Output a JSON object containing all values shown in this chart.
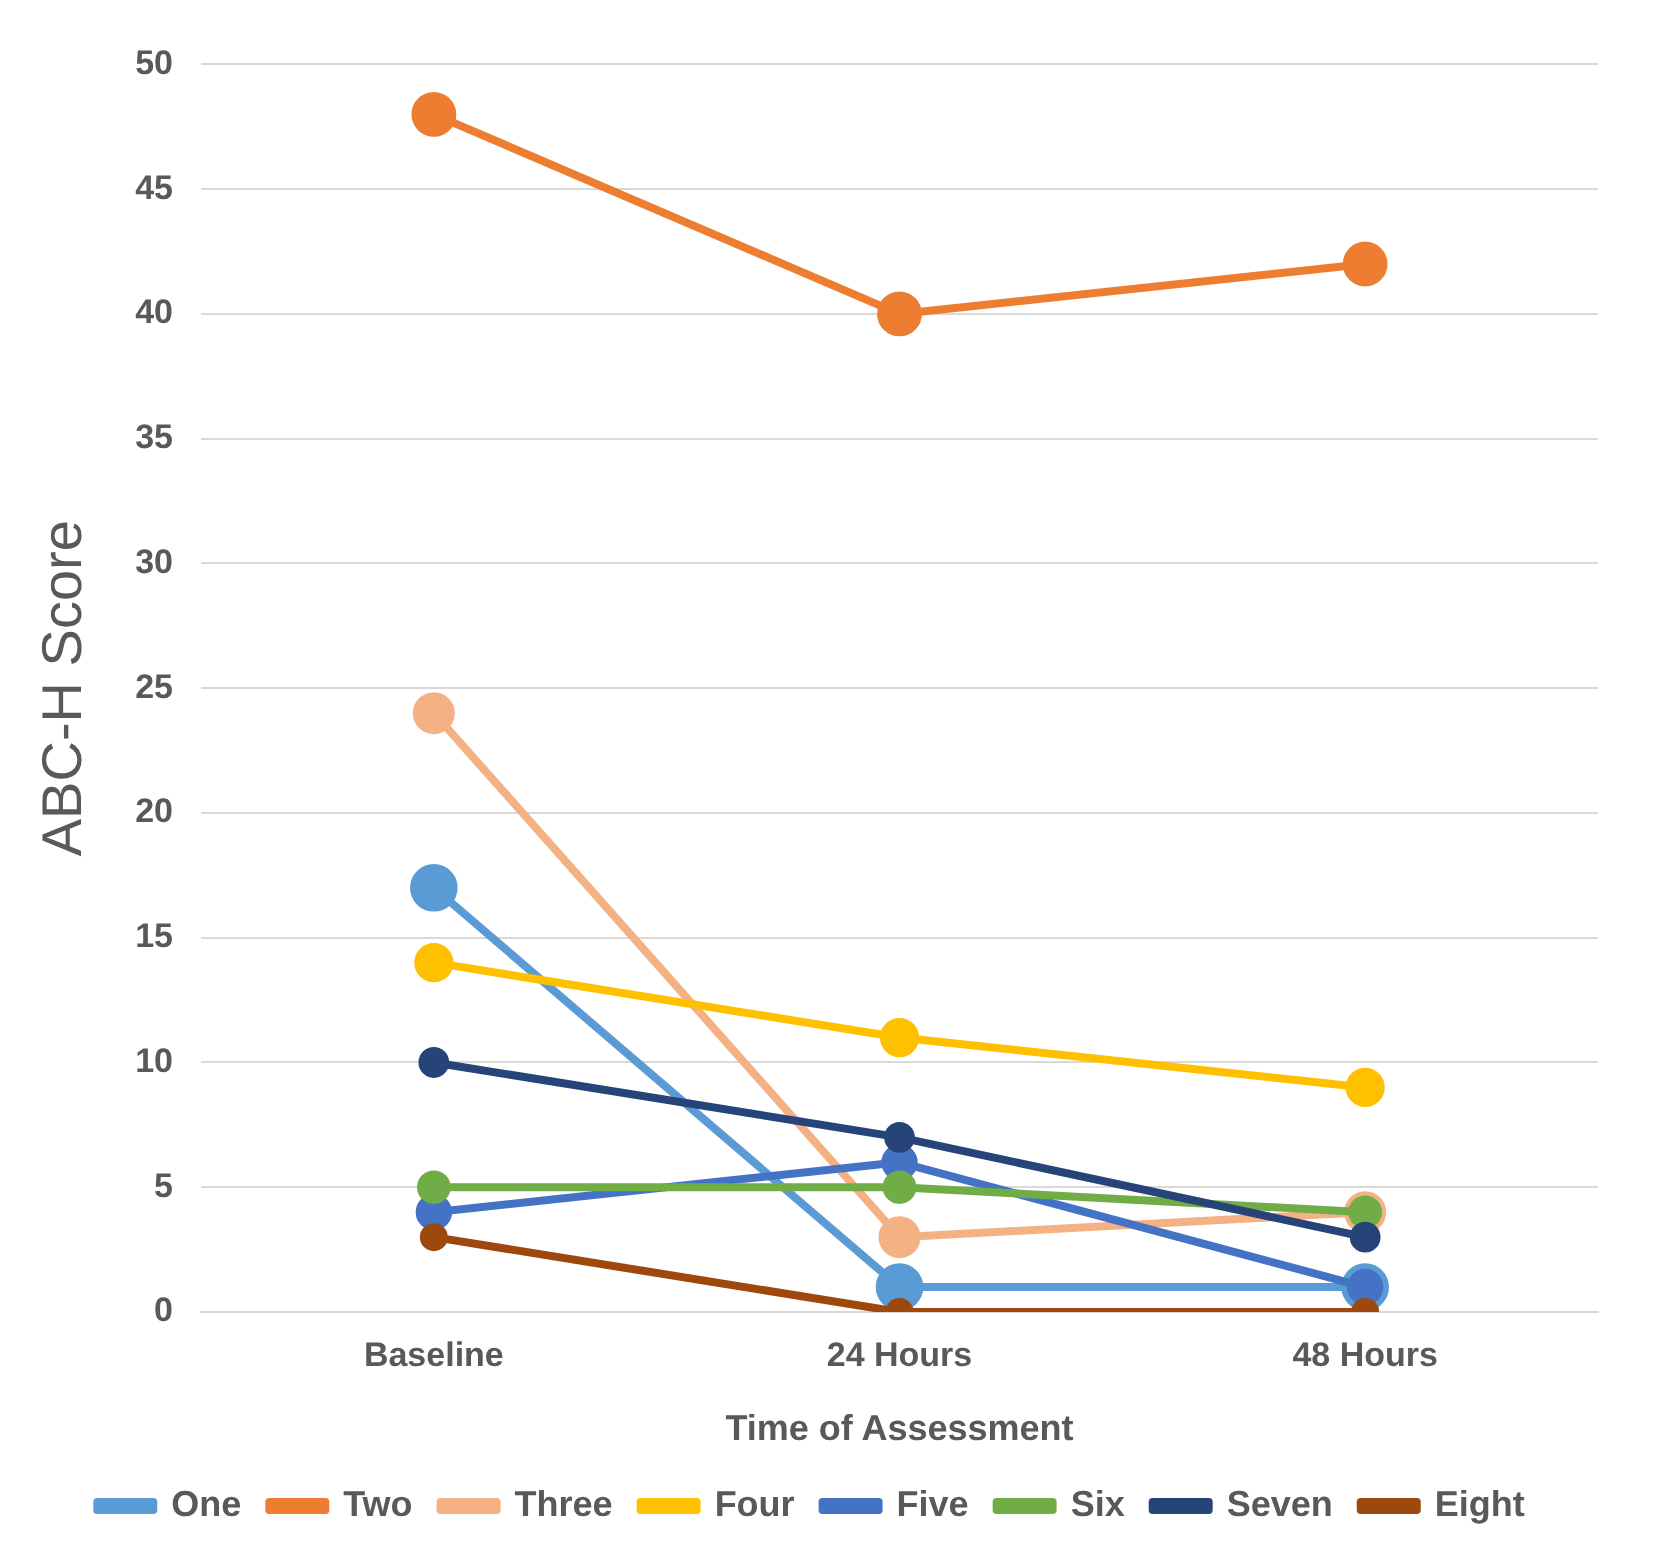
{
  "chart_data": {
    "type": "line",
    "xlabel": "Time of Assessment",
    "ylabel": "ABC-H Score",
    "categories": [
      "Baseline",
      "24 Hours",
      "48 Hours"
    ],
    "series": [
      {
        "name": "One",
        "color": "#5b9bd5",
        "values": [
          17,
          1,
          1
        ]
      },
      {
        "name": "Two",
        "color": "#ed7d31",
        "values": [
          48,
          40,
          42
        ]
      },
      {
        "name": "Three",
        "color": "#f4b183",
        "values": [
          24,
          3,
          4
        ]
      },
      {
        "name": "Four",
        "color": "#ffc000",
        "values": [
          14,
          11,
          9
        ]
      },
      {
        "name": "Five",
        "color": "#4472c4",
        "values": [
          4,
          6,
          1
        ]
      },
      {
        "name": "Six",
        "color": "#70ad47",
        "values": [
          5,
          5,
          4
        ]
      },
      {
        "name": "Seven",
        "color": "#264478",
        "values": [
          10,
          7,
          3
        ]
      },
      {
        "name": "Eight",
        "color": "#9e480e",
        "values": [
          3,
          0,
          0
        ]
      }
    ],
    "ylim": [
      0,
      50
    ],
    "yticks": [
      0,
      5,
      10,
      15,
      20,
      25,
      30,
      35,
      40,
      45,
      50
    ],
    "grid": "y",
    "legend": "bottom",
    "marker": "circle",
    "line_style": "solid"
  }
}
